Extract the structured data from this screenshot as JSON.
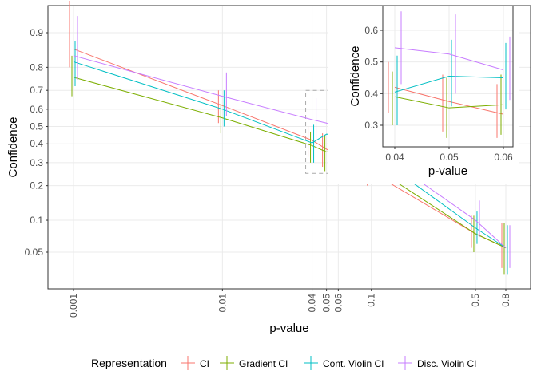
{
  "chart_data": [
    {
      "type": "line",
      "role": "main-panel",
      "xlabel": "p-value",
      "ylabel": "Confidence",
      "x_scale": "log",
      "y_scale": "logit",
      "x_ticks": [
        0.001,
        0.01,
        0.04,
        0.05,
        0.06,
        0.1,
        0.5,
        0.8
      ],
      "x_tick_labels": [
        "0.001",
        "0.01",
        "0.04",
        "0.05",
        "0.06",
        "0.1",
        "0.5",
        "0.8"
      ],
      "y_ticks": [
        0.05,
        0.1,
        0.2,
        0.3,
        0.4,
        0.5,
        0.6,
        0.7,
        0.8,
        0.9
      ],
      "y_tick_labels": [
        "0.05",
        "0.1",
        "0.2",
        "0.3",
        "0.4",
        "0.5",
        "0.6",
        "0.7",
        "0.8",
        "0.9"
      ],
      "grid": true,
      "zoom_box": {
        "x": [
          0.04,
          0.06
        ],
        "y": [
          0.25,
          0.7
        ]
      },
      "x": [
        0.001,
        0.01,
        0.04,
        0.05,
        0.06,
        0.1,
        0.5,
        0.8
      ],
      "series": [
        {
          "name": "CI",
          "color": "#F8766D",
          "values": [
            0.86,
            0.62,
            0.42,
            0.37,
            0.335,
            0.255,
            0.075,
            0.055
          ],
          "lower": [
            0.8,
            0.52,
            0.33,
            0.28,
            0.26,
            0.2,
            0.055,
            0.035
          ],
          "upper": [
            0.95,
            0.7,
            0.5,
            0.46,
            0.43,
            0.33,
            0.11,
            0.095
          ]
        },
        {
          "name": "Gradient CI",
          "color": "#7CAE00",
          "values": [
            0.76,
            0.55,
            0.39,
            0.355,
            0.365,
            0.285,
            0.075,
            0.055
          ],
          "lower": [
            0.67,
            0.46,
            0.3,
            0.26,
            0.27,
            0.22,
            0.05,
            0.03
          ],
          "upper": [
            0.84,
            0.63,
            0.47,
            0.45,
            0.46,
            0.35,
            0.11,
            0.095
          ]
        },
        {
          "name": "Cont. Violin CI",
          "color": "#00BFC4",
          "values": [
            0.82,
            0.6,
            0.405,
            0.455,
            0.45,
            0.35,
            0.085,
            0.055
          ],
          "lower": [
            0.72,
            0.5,
            0.3,
            0.36,
            0.35,
            0.27,
            0.06,
            0.03
          ],
          "upper": [
            0.88,
            0.7,
            0.51,
            0.57,
            0.56,
            0.43,
            0.12,
            0.09
          ]
        },
        {
          "name": "Disc. Violin CI",
          "color": "#C77CFF",
          "values": [
            0.84,
            0.67,
            0.54,
            0.52,
            0.48,
            0.38,
            0.1,
            0.055
          ],
          "lower": [
            0.75,
            0.56,
            0.42,
            0.4,
            0.38,
            0.3,
            0.07,
            0.035
          ],
          "upper": [
            0.93,
            0.78,
            0.66,
            0.65,
            0.59,
            0.48,
            0.15,
            0.09
          ]
        }
      ]
    },
    {
      "type": "line",
      "role": "inset-panel",
      "xlabel": "p-value",
      "ylabel": "Confidence",
      "x_ticks": [
        0.04,
        0.05,
        0.06
      ],
      "x_tick_labels": [
        "0.04",
        "0.05",
        "0.06"
      ],
      "y_ticks": [
        0.3,
        0.4,
        0.5,
        0.6
      ],
      "y_tick_labels": [
        "0.3",
        "0.4",
        "0.5",
        "0.6"
      ],
      "grid": true,
      "x": [
        0.04,
        0.05,
        0.06
      ],
      "series": [
        {
          "name": "CI",
          "color": "#F8766D",
          "values": [
            0.42,
            0.375,
            0.335
          ],
          "lower": [
            0.34,
            0.28,
            0.26
          ],
          "upper": [
            0.5,
            0.46,
            0.43
          ]
        },
        {
          "name": "Gradient CI",
          "color": "#7CAE00",
          "values": [
            0.39,
            0.355,
            0.365
          ],
          "lower": [
            0.3,
            0.26,
            0.27
          ],
          "upper": [
            0.47,
            0.45,
            0.46
          ]
        },
        {
          "name": "Cont. Violin CI",
          "color": "#00BFC4",
          "values": [
            0.405,
            0.455,
            0.45
          ],
          "lower": [
            0.3,
            0.36,
            0.35
          ],
          "upper": [
            0.52,
            0.57,
            0.56
          ]
        },
        {
          "name": "Disc. Violin CI",
          "color": "#C77CFF",
          "values": [
            0.545,
            0.525,
            0.475
          ],
          "lower": [
            0.43,
            0.4,
            0.38
          ],
          "upper": [
            0.66,
            0.65,
            0.58
          ]
        }
      ]
    }
  ],
  "legend": {
    "title": "Representation",
    "placement": "bottom",
    "items": [
      {
        "label": "CI",
        "color": "#F8766D"
      },
      {
        "label": "Gradient CI",
        "color": "#7CAE00"
      },
      {
        "label": "Cont. Violin CI",
        "color": "#00BFC4"
      },
      {
        "label": "Disc. Violin CI",
        "color": "#C77CFF"
      }
    ]
  }
}
